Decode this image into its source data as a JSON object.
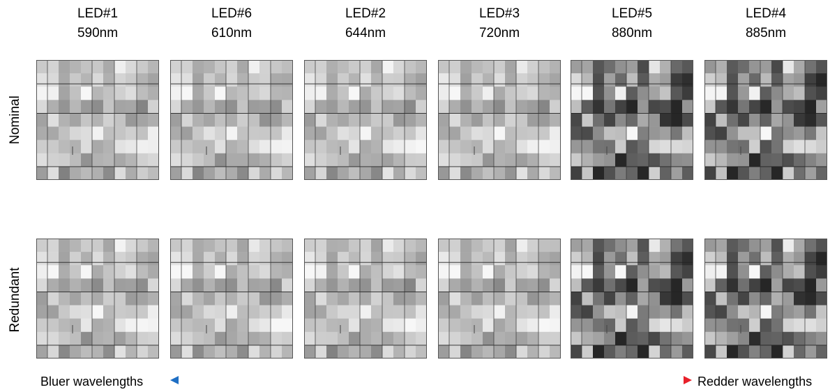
{
  "figure": {
    "columns": [
      {
        "led": "LED#1",
        "wavelength": "590nm"
      },
      {
        "led": "LED#6",
        "wavelength": "610nm"
      },
      {
        "led": "LED#2",
        "wavelength": "644nm"
      },
      {
        "led": "LED#3",
        "wavelength": "720nm"
      },
      {
        "led": "LED#5",
        "wavelength": "880nm"
      },
      {
        "led": "LED#4",
        "wavelength": "885nm"
      }
    ],
    "rows": [
      {
        "label": "Nominal"
      },
      {
        "label": "Redundant"
      }
    ],
    "axis": {
      "left_label": "Bluer wavelengths",
      "right_label": "Redder wavelengths",
      "gradient_colors": [
        "#1f6fc4",
        "#e8202a"
      ]
    },
    "tile_grid": {
      "cols": 11,
      "rows": 9
    }
  }
}
